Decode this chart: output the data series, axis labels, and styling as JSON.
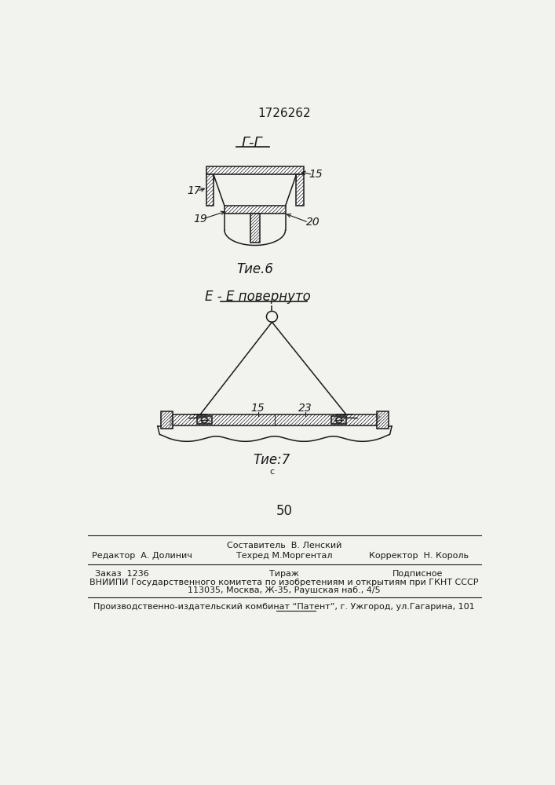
{
  "patent_number": "1726262",
  "fig6_label": "Г-Г",
  "fig6_caption": "Τие.6",
  "fig7_label": "E - E повернуто",
  "fig7_caption": "Τие:7",
  "label_15_fig6": "15",
  "label_17": "17",
  "label_19": "19",
  "label_20": "20",
  "label_15_fig7": "15",
  "label_23": "23",
  "page_number": "50",
  "footer_sestavitel": "Составитель  В. Ленский",
  "footer_redaktor": "Редактор  А. Долинич",
  "footer_tehred": "Техред М.Моргентал",
  "footer_korrektor": "Корректор  Н. Король",
  "footer_zakaz": "Заказ  1236",
  "footer_tirazh": "Тираж",
  "footer_podpisnoe": "Подписное",
  "footer_vniiipi": "ВНИИПИ Государственного комитета по изобретениям и открытиям при ГКНТ СССР",
  "footer_address": "113035, Москва, Ж-35, Раушская наб., 4/5",
  "footer_kombinat": "Производственно-издательский комбинат “Патент”, г. Ужгород, ул.Гагарина, 101",
  "bg_color": "#f2f2ee",
  "line_color": "#1a1a1a"
}
